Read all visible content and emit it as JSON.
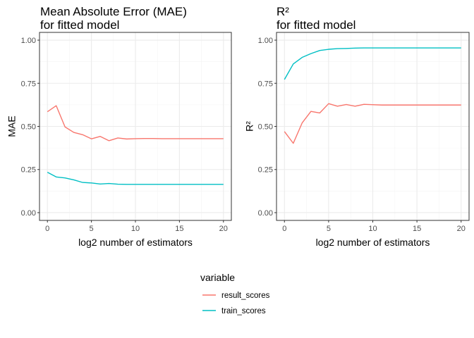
{
  "chart_data": [
    {
      "type": "line",
      "title_lines": [
        "Mean Absolute Error (MAE)",
        "for fitted model"
      ],
      "xlabel": "log2 number of estimators",
      "ylabel": "MAE",
      "xlim": [
        0,
        20
      ],
      "ylim": [
        0,
        1
      ],
      "x_ticks": [
        0,
        5,
        10,
        15,
        20
      ],
      "y_ticks": [
        0,
        0.25,
        0.5,
        0.75,
        1
      ],
      "y_tick_labels": [
        "0.00",
        "0.25",
        "0.50",
        "0.75",
        "1.00"
      ],
      "grid": true,
      "x": [
        0,
        1,
        2,
        3,
        4,
        5,
        6,
        7,
        8,
        9,
        10,
        11,
        12,
        13,
        14,
        15,
        16,
        17,
        18,
        19,
        20
      ],
      "series": [
        {
          "name": "result_scores",
          "color": "#F8766D",
          "values": [
            0.585,
            0.62,
            0.497,
            0.465,
            0.452,
            0.428,
            0.442,
            0.417,
            0.433,
            0.427,
            0.429,
            0.43,
            0.43,
            0.429,
            0.429,
            0.429,
            0.429,
            0.429,
            0.429,
            0.429,
            0.429
          ]
        },
        {
          "name": "train_scores",
          "color": "#00BFC4",
          "values": [
            0.234,
            0.207,
            0.201,
            0.19,
            0.175,
            0.172,
            0.166,
            0.169,
            0.165,
            0.164,
            0.164,
            0.164,
            0.164,
            0.164,
            0.164,
            0.164,
            0.164,
            0.164,
            0.164,
            0.164,
            0.164
          ]
        }
      ]
    },
    {
      "type": "line",
      "title_lines": [
        "R²",
        "for fitted model"
      ],
      "xlabel": "log2 number of estimators",
      "ylabel": "R²",
      "xlim": [
        0,
        20
      ],
      "ylim": [
        0,
        1
      ],
      "x_ticks": [
        0,
        5,
        10,
        15,
        20
      ],
      "y_ticks": [
        0,
        0.25,
        0.5,
        0.75,
        1
      ],
      "y_tick_labels": [
        "0.00",
        "0.25",
        "0.50",
        "0.75",
        "1.00"
      ],
      "grid": true,
      "x": [
        0,
        1,
        2,
        3,
        4,
        5,
        6,
        7,
        8,
        9,
        10,
        11,
        12,
        13,
        14,
        15,
        16,
        17,
        18,
        19,
        20
      ],
      "series": [
        {
          "name": "result_scores",
          "color": "#F8766D",
          "values": [
            0.47,
            0.402,
            0.52,
            0.587,
            0.578,
            0.632,
            0.617,
            0.627,
            0.617,
            0.628,
            0.626,
            0.624,
            0.624,
            0.624,
            0.624,
            0.624,
            0.624,
            0.624,
            0.624,
            0.624,
            0.624
          ]
        },
        {
          "name": "train_scores",
          "color": "#00BFC4",
          "values": [
            0.772,
            0.862,
            0.9,
            0.922,
            0.94,
            0.947,
            0.951,
            0.952,
            0.954,
            0.955,
            0.955,
            0.955,
            0.955,
            0.955,
            0.955,
            0.955,
            0.955,
            0.955,
            0.955,
            0.955,
            0.955
          ]
        }
      ]
    }
  ],
  "legend": {
    "title": "variable",
    "placement": "bottom",
    "items": [
      {
        "label": "result_scores",
        "color": "#F8766D"
      },
      {
        "label": "train_scores",
        "color": "#00BFC4"
      }
    ]
  }
}
